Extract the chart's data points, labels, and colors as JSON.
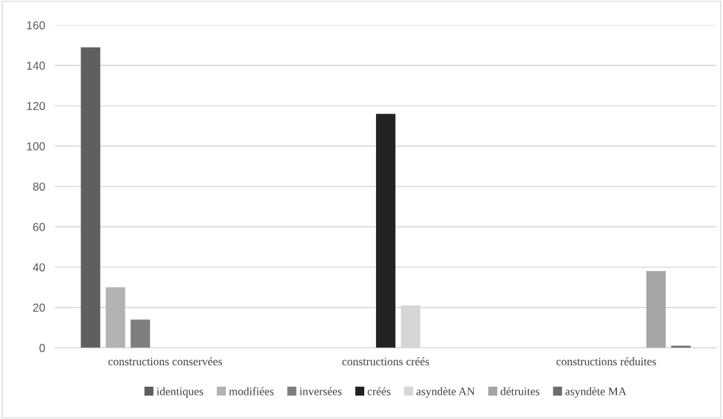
{
  "chart_data": {
    "type": "bar",
    "categories": [
      "constructions conservées",
      "constructions créés",
      "constructions réduites"
    ],
    "series": [
      {
        "name": "identiques",
        "color": "#5f5f5f",
        "values": [
          149,
          null,
          null
        ]
      },
      {
        "name": "modifiées",
        "color": "#b2b2b2",
        "values": [
          30,
          null,
          null
        ]
      },
      {
        "name": "inversées",
        "color": "#7f7f7f",
        "values": [
          14,
          null,
          null
        ]
      },
      {
        "name": "créés",
        "color": "#222222",
        "values": [
          null,
          116,
          null
        ]
      },
      {
        "name": "asyndète AN",
        "color": "#d6d6d6",
        "values": [
          null,
          21,
          null
        ]
      },
      {
        "name": "détruites",
        "color": "#a5a5a5",
        "values": [
          null,
          null,
          38
        ]
      },
      {
        "name": "asyndète MA",
        "color": "#6e6e6e",
        "values": [
          null,
          null,
          1
        ]
      }
    ],
    "ylim": [
      0,
      160
    ],
    "yticks": [
      0,
      20,
      40,
      60,
      80,
      100,
      120,
      140,
      160
    ],
    "grid": "y",
    "legend": "bottom"
  }
}
